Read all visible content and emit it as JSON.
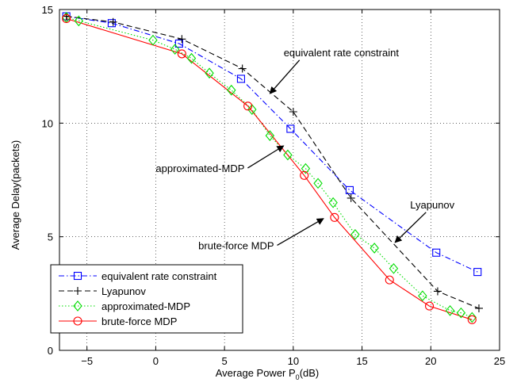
{
  "chart_data": {
    "type": "line",
    "title": "",
    "xlabel": "Average Power P",
    "xlabel_sub": "0",
    "xlabel_unit": "(dB)",
    "ylabel": "Average Delay(packets)",
    "xlim": [
      -7,
      25
    ],
    "ylim": [
      0,
      15
    ],
    "xticks": [
      -5,
      0,
      5,
      10,
      15,
      20,
      25
    ],
    "yticks": [
      0,
      5,
      10,
      15
    ],
    "grid": true,
    "legend_position": "bottom-left",
    "series": [
      {
        "name": "equivalent rate constraint",
        "color": "#0000ff",
        "dash": "dash-dot",
        "marker": "square",
        "x": [
          -6.5,
          -3.2,
          1.7,
          6.2,
          9.8,
          14.1,
          20.4,
          23.4
        ],
        "y": [
          14.7,
          14.4,
          13.5,
          11.95,
          9.75,
          7.05,
          4.3,
          3.45
        ]
      },
      {
        "name": "Lyapunov",
        "color": "#000000",
        "dash": "dash",
        "marker": "plus",
        "x": [
          -6.5,
          -3.1,
          1.9,
          6.3,
          10.0,
          14.2,
          20.5,
          23.5
        ],
        "y": [
          14.7,
          14.45,
          13.7,
          12.4,
          10.5,
          6.7,
          2.6,
          1.85
        ]
      },
      {
        "name": "approximated-MDP",
        "color": "#00dd00",
        "dash": "dotted",
        "marker": "diamond",
        "x": [
          -6.5,
          -5.6,
          -0.2,
          1.4,
          2.6,
          3.9,
          5.5,
          7.0,
          8.3,
          9.6,
          10.9,
          11.8,
          12.9,
          14.5,
          15.9,
          17.3,
          19.4,
          21.4,
          22.2,
          23.0
        ],
        "y": [
          14.65,
          14.5,
          13.65,
          13.25,
          12.85,
          12.2,
          11.45,
          10.6,
          9.45,
          8.6,
          8.0,
          7.35,
          6.5,
          5.1,
          4.5,
          3.6,
          2.4,
          1.75,
          1.65,
          1.45
        ]
      },
      {
        "name": "brute-force MDP",
        "color": "#ff0000",
        "dash": "solid",
        "marker": "circle",
        "x": [
          -6.5,
          1.9,
          6.7,
          10.8,
          13.0,
          17.0,
          19.9,
          23.0
        ],
        "y": [
          14.6,
          13.05,
          10.75,
          7.7,
          5.85,
          3.1,
          1.95,
          1.35
        ]
      }
    ],
    "annotations": [
      {
        "text": "equivalent rate constraint",
        "text_x": 9.3,
        "text_y": 12.95,
        "arrow_to_x": 8.3,
        "arrow_to_y": 11.3
      },
      {
        "text": "approximated-MDP",
        "text_x": 0.0,
        "text_y": 7.85,
        "arrow_to_x": 9.3,
        "arrow_to_y": 9.0
      },
      {
        "text": "Lyapunov",
        "text_x": 18.5,
        "text_y": 6.25,
        "arrow_to_x": 17.4,
        "arrow_to_y": 4.75
      },
      {
        "text": "brute-force MDP",
        "text_x": 3.1,
        "text_y": 4.45,
        "arrow_to_x": 12.2,
        "arrow_to_y": 5.8
      }
    ]
  }
}
